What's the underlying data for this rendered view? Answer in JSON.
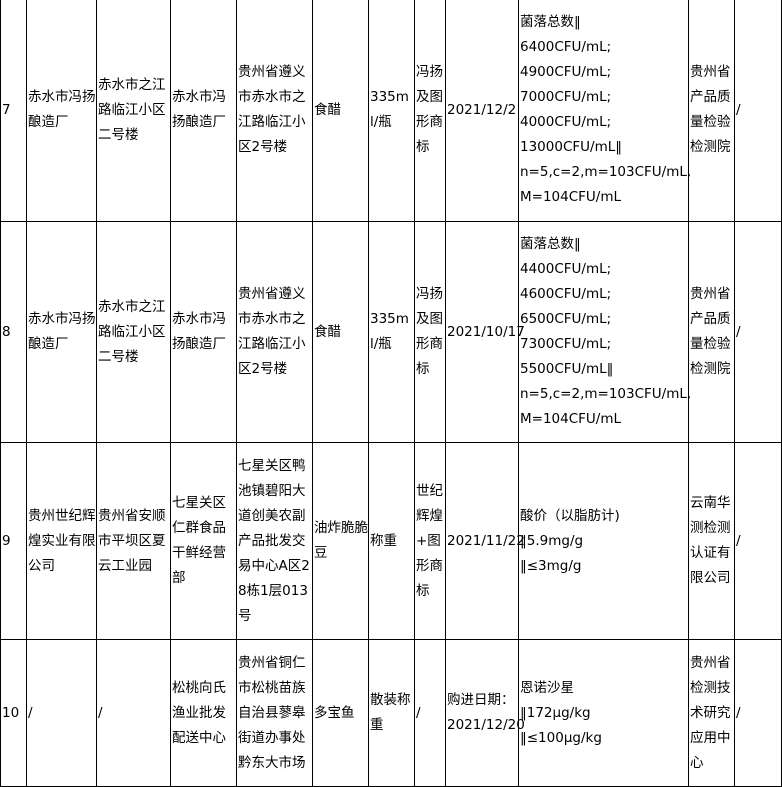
{
  "rows": [
    {
      "no": "7",
      "producer": "赤水市冯扬酿造厂",
      "producer_address": "赤水市之江路临江小区二号楼",
      "sampled_unit": "赤水市冯扬酿造厂",
      "sampled_address": "贵州省遵义市赤水市之江路临江小区2号楼",
      "food_name": "食醋",
      "spec": "335ml/瓶",
      "brand": "冯扬及图形商标",
      "date": [
        "2021/12/2"
      ],
      "result": [
        "菌落总数‖",
        "6400CFU/mL;",
        "4900CFU/mL;",
        "7000CFU/mL;",
        "4000CFU/mL;",
        "13000CFU/mL‖",
        "n=5,c=2,m=103CFU/mL,",
        "M=104CFU/mL"
      ],
      "agency": "贵州省产品质量检验检测院",
      "note": "/"
    },
    {
      "no": "8",
      "producer": "赤水市冯扬酿造厂",
      "producer_address": "赤水市之江路临江小区二号楼",
      "sampled_unit": "赤水市冯扬酿造厂",
      "sampled_address": "贵州省遵义市赤水市之江路临江小区2号楼",
      "food_name": "食醋",
      "spec": "335ml/瓶",
      "brand": "冯扬及图形商标",
      "date": [
        "2021/10/17"
      ],
      "result": [
        "菌落总数‖",
        "4400CFU/mL;",
        "4600CFU/mL;",
        "6500CFU/mL;",
        "7300CFU/mL;",
        "5500CFU/mL‖",
        "n=5,c=2,m=103CFU/mL,",
        "M=104CFU/mL"
      ],
      "agency": "贵州省产品质量检验检测院",
      "note": "/"
    },
    {
      "no": "9",
      "producer": "贵州世纪辉煌实业有限公司",
      "producer_address": "贵州省安顺市平坝区夏云工业园",
      "sampled_unit": "七星关区仁群食品干鲜经营部",
      "sampled_address": "七星关区鸭池镇碧阳大道创美农副产品批发交易中心A区28栋1层013号",
      "food_name": "油炸脆脆豆",
      "spec": "称重",
      "brand": "世纪辉煌+图形商标",
      "date": [
        "2021/11/22"
      ],
      "result": [
        "酸价（以脂肪计)",
        "‖5.9mg/g",
        "‖≤3mg/g"
      ],
      "agency": "云南华测检测认证有限公司",
      "note": "/"
    },
    {
      "no": "10",
      "producer": "/",
      "producer_address": "/",
      "sampled_unit": "松桃向氏渔业批发配送中心",
      "sampled_address": "贵州省铜仁市松桃苗族自治县蓼皋街道办事处黔东大市场",
      "food_name": "多宝鱼",
      "spec": "散装称重",
      "brand": "/",
      "date": [
        "购进日期：",
        "2021/12/20"
      ],
      "result": [
        "恩诺沙星",
        "‖172μg/kg",
        "‖≤100μg/kg"
      ],
      "agency": "贵州省检测技术研究应用中心",
      "note": "/"
    }
  ]
}
